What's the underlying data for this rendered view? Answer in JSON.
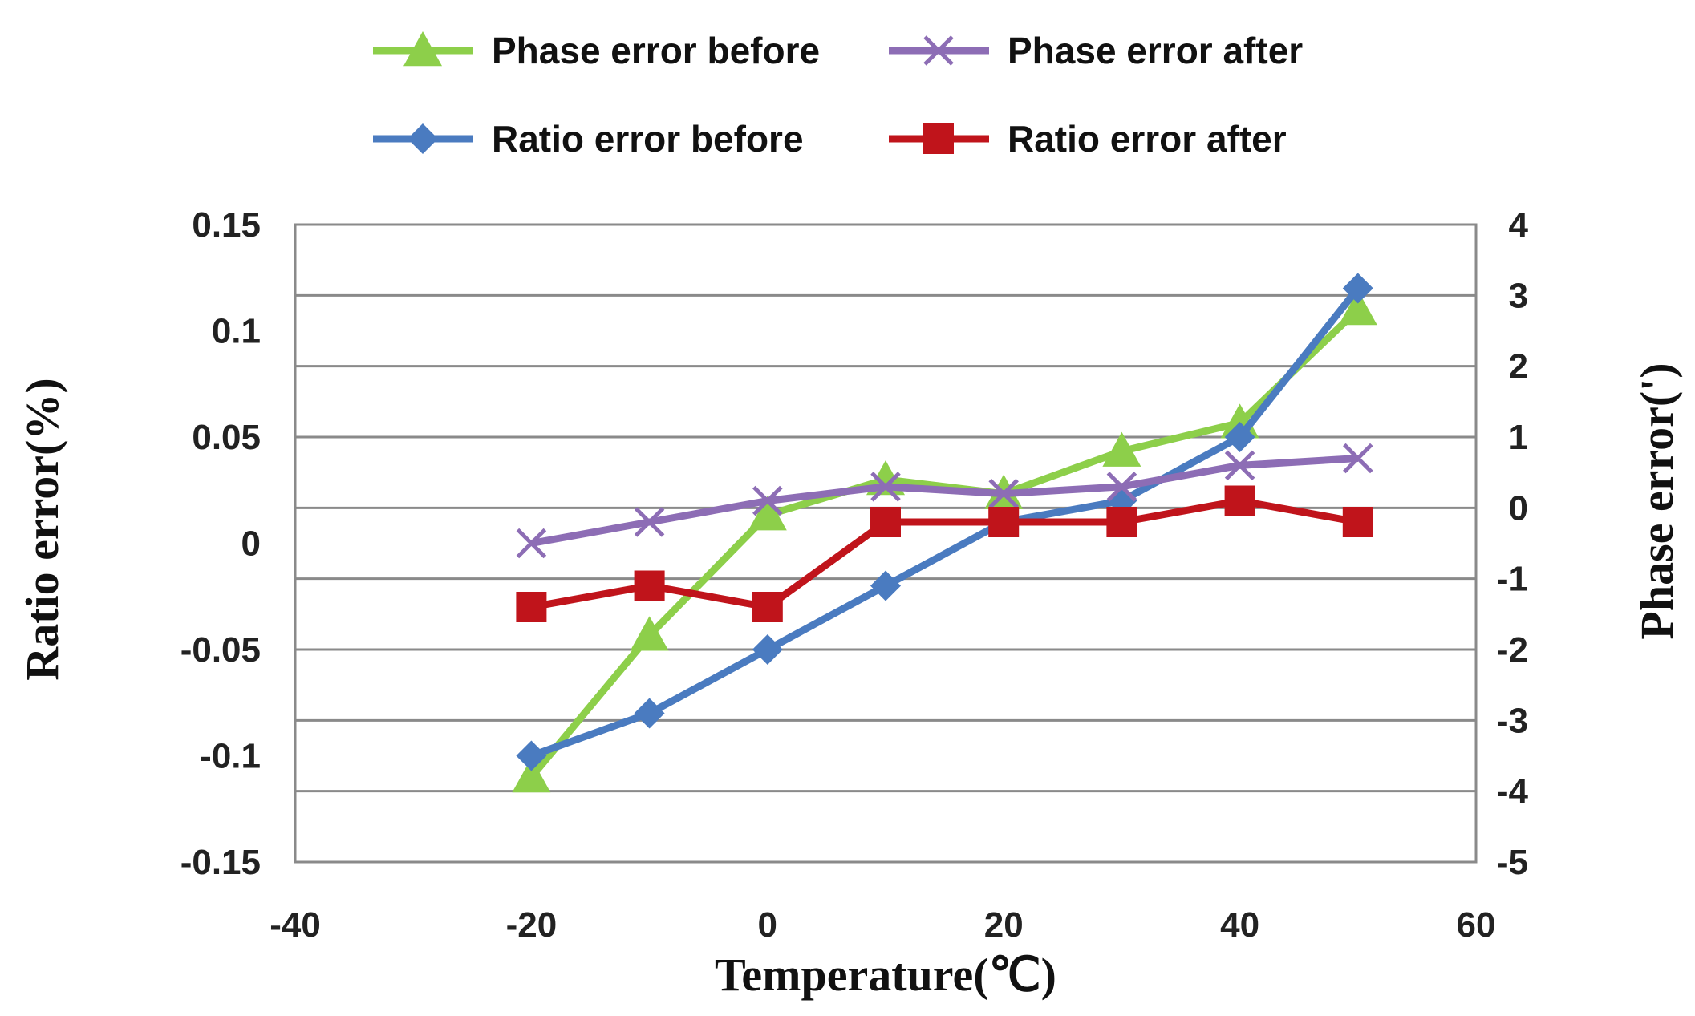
{
  "chart_data": {
    "type": "line",
    "title": "",
    "xlabel": "Temperature(℃)",
    "ylabel": "Ratio error(%)",
    "y2label": "Phase error(')",
    "x_ticks": [
      "-40",
      "-20",
      "0",
      "20",
      "40",
      "60"
    ],
    "y_ticks": [
      "0.15",
      "0.1",
      "0.05",
      "0",
      "-0.05",
      "-0.1",
      "-0.15"
    ],
    "y2_ticks": [
      "4",
      "3",
      "2",
      "1",
      "0",
      "-1",
      "-2",
      "-3",
      "-4",
      "-5"
    ],
    "xlim": [
      -40,
      60
    ],
    "ylim": [
      -0.15,
      0.15
    ],
    "y2lim": [
      -5,
      4
    ],
    "grid": true,
    "legend_position": "top",
    "x": [
      -20,
      -10,
      0,
      10,
      20,
      30,
      40,
      50
    ],
    "series": [
      {
        "name": "Phase error before",
        "axis": "right",
        "color": "#8DCF4A",
        "marker": "triangle",
        "values": [
          -3.8,
          -1.8,
          -0.1,
          0.4,
          0.2,
          0.8,
          1.2,
          2.8
        ]
      },
      {
        "name": "Phase error after",
        "axis": "right",
        "color": "#8D6DB5",
        "marker": "x",
        "values": [
          -0.5,
          -0.2,
          0.1,
          0.3,
          0.2,
          0.3,
          0.6,
          0.7
        ]
      },
      {
        "name": "Ratio error before",
        "axis": "left",
        "color": "#4A7BC0",
        "marker": "diamond",
        "values": [
          -0.1,
          -0.08,
          -0.05,
          -0.02,
          0.01,
          0.02,
          0.05,
          0.12
        ]
      },
      {
        "name": "Ratio error after",
        "axis": "left",
        "color": "#C0141B",
        "marker": "square",
        "values": [
          -0.03,
          -0.02,
          -0.03,
          0.01,
          0.01,
          0.01,
          0.02,
          0.01
        ]
      }
    ]
  }
}
